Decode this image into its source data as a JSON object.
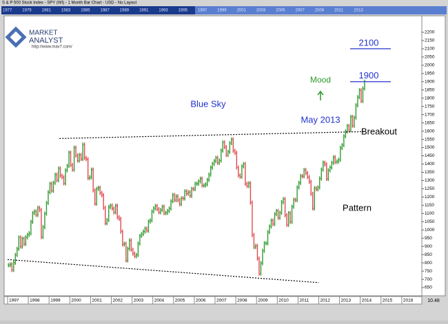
{
  "chart_data": {
    "type": "bar",
    "window_title": "S & P 500 Stock Index - SPY (WI) - 1 Month Bar Chart - USD - No Layout",
    "logo": {
      "line1": "MARKET",
      "line2": "ANALYST",
      "url": "http://www.mav7.com/"
    },
    "overview_years": [
      1977,
      1979,
      1981,
      1983,
      1985,
      1987,
      1989,
      1991,
      1993,
      1995,
      1997,
      1999,
      2001,
      2003,
      2005,
      2007,
      2009,
      2011,
      2013
    ],
    "xlim": [
      1996.9,
      2016.9
    ],
    "xticks": [
      1997,
      1998,
      1999,
      2000,
      2001,
      2002,
      2003,
      2004,
      2005,
      2006,
      2007,
      2008,
      2009,
      2010,
      2011,
      2012,
      2013,
      2014,
      2015,
      2016
    ],
    "ylim": [
      600,
      2300
    ],
    "yticks": [
      650,
      700,
      750,
      800,
      850,
      900,
      950,
      1000,
      1050,
      1100,
      1150,
      1200,
      1250,
      1300,
      1350,
      1400,
      1450,
      1500,
      1550,
      1600,
      1650,
      1700,
      1750,
      1800,
      1850,
      1900,
      1950,
      2000,
      2050,
      2100,
      2150,
      2200
    ],
    "up_color": "#2e9a2e",
    "down_color": "#e0484f",
    "bars": [
      {
        "year": 1997,
        "values": [
          786,
          791,
          757,
          801,
          848,
          885,
          954,
          899,
          947,
          915,
          955,
          970
        ]
      },
      {
        "year": 1998,
        "values": [
          980,
          1049,
          1102,
          1112,
          1091,
          1134,
          1121,
          957,
          1017,
          1099,
          1164,
          1229
        ]
      },
      {
        "year": 1999,
        "values": [
          1280,
          1238,
          1286,
          1335,
          1302,
          1373,
          1329,
          1320,
          1283,
          1362,
          1389,
          1469
        ]
      },
      {
        "year": 2000,
        "values": [
          1394,
          1366,
          1499,
          1452,
          1421,
          1455,
          1431,
          1518,
          1437,
          1429,
          1315,
          1320
        ]
      },
      {
        "year": 2001,
        "values": [
          1366,
          1240,
          1160,
          1249,
          1256,
          1224,
          1211,
          1134,
          1041,
          1060,
          1139,
          1148
        ]
      },
      {
        "year": 2002,
        "values": [
          1130,
          1107,
          1147,
          1077,
          1067,
          990,
          912,
          916,
          815,
          886,
          936,
          880
        ]
      },
      {
        "year": 2003,
        "values": [
          856,
          841,
          848,
          917,
          964,
          975,
          990,
          1008,
          996,
          1051,
          1058,
          1112
        ]
      },
      {
        "year": 2004,
        "values": [
          1131,
          1145,
          1126,
          1107,
          1121,
          1141,
          1102,
          1104,
          1115,
          1130,
          1174,
          1212
        ]
      },
      {
        "year": 2005,
        "values": [
          1181,
          1204,
          1181,
          1157,
          1192,
          1191,
          1234,
          1220,
          1229,
          1207,
          1249,
          1248
        ]
      },
      {
        "year": 2006,
        "values": [
          1280,
          1281,
          1295,
          1311,
          1270,
          1270,
          1277,
          1304,
          1336,
          1378,
          1401,
          1418
        ]
      },
      {
        "year": 2007,
        "values": [
          1438,
          1407,
          1421,
          1482,
          1531,
          1503,
          1455,
          1474,
          1527,
          1549,
          1481,
          1468
        ]
      },
      {
        "year": 2008,
        "values": [
          1379,
          1331,
          1323,
          1386,
          1400,
          1280,
          1267,
          1283,
          1166,
          969,
          896,
          903
        ]
      },
      {
        "year": 2009,
        "values": [
          826,
          735,
          798,
          873,
          919,
          919,
          987,
          1021,
          1057,
          1036,
          1096,
          1115
        ]
      },
      {
        "year": 2010,
        "values": [
          1074,
          1104,
          1169,
          1187,
          1089,
          1031,
          1102,
          1049,
          1141,
          1183,
          1181,
          1258
        ]
      },
      {
        "year": 2011,
        "values": [
          1286,
          1327,
          1326,
          1364,
          1345,
          1321,
          1292,
          1219,
          1131,
          1253,
          1247,
          1258
        ]
      },
      {
        "year": 2012,
        "values": [
          1312,
          1366,
          1408,
          1398,
          1310,
          1362,
          1379,
          1407,
          1441,
          1412,
          1416,
          1426
        ]
      },
      {
        "year": 2013,
        "values": [
          1498,
          1515,
          1569,
          1598,
          1631,
          1606,
          1686,
          1633,
          1682,
          1757,
          1806,
          1848
        ]
      },
      {
        "year": 2014,
        "values": [
          1783,
          1859,
          1900
        ]
      }
    ],
    "trendlines": [
      {
        "x": [
          1999.5,
          2014.2
        ],
        "y": [
          1555,
          1597
        ]
      },
      {
        "x": [
          1997,
          2012
        ],
        "y": [
          820,
          680
        ]
      }
    ],
    "levels": [
      2100,
      1900
    ],
    "annotations": {
      "mood": "Mood",
      "blue_sky": "Blue Sky",
      "may": "May 2013",
      "breakout": "Breakout",
      "pattern": "Pattern"
    },
    "corner_label": "10.48"
  }
}
